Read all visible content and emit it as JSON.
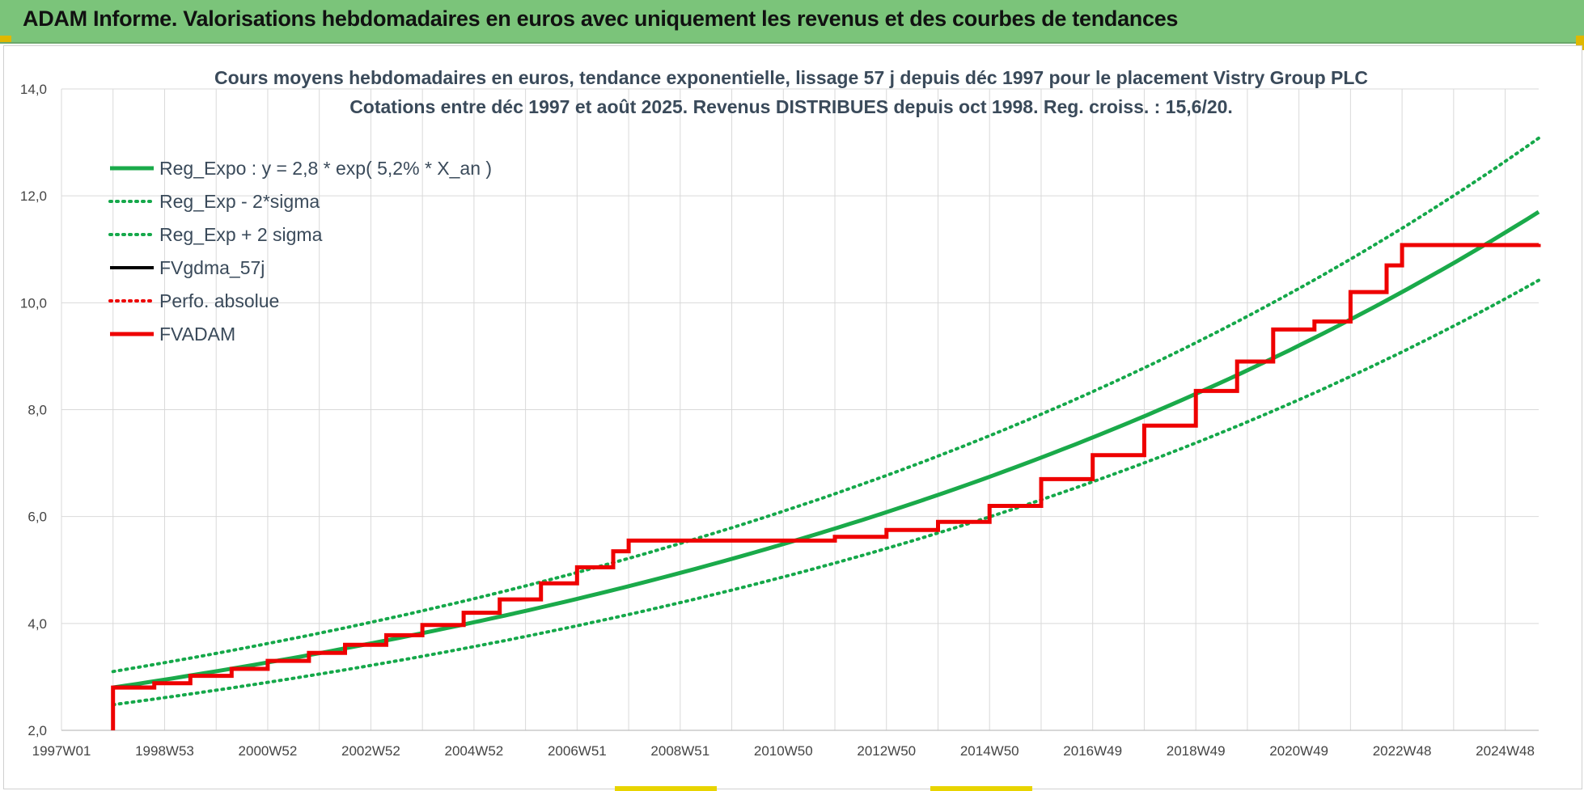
{
  "header": {
    "title": "ADAM Informe. Valorisations hebdomadaires en euros avec uniquement les revenus et des courbes de tendances"
  },
  "colors": {
    "banner": "#7bc47a",
    "reg_green": "#1aaa4a",
    "sigma_green": "#15a84a",
    "fvgdma_black": "#000000",
    "fvadam_red": "#ee0000"
  },
  "chart_data": {
    "type": "line",
    "title_line1": "Cours moyens hebdomadaires en euros, tendance exponentielle, lissage 57 j depuis déc 1997 pour le placement Vistry Group PLC",
    "title_line2": "Cotations entre déc 1997 et août 2025. Revenus DISTRIBUES depuis oct 1998. Reg. croiss. : 15,6/20.",
    "xlabel": "",
    "ylabel": "",
    "ylim": [
      2.0,
      14.0
    ],
    "xlim": [
      1997.0,
      2025.65
    ],
    "y_ticks": [
      "2,0",
      "4,0",
      "6,0",
      "8,0",
      "10,0",
      "12,0",
      "14,0"
    ],
    "x_ticks": [
      {
        "label": "1997W01",
        "x": 1997.0
      },
      {
        "label": "1998W53",
        "x": 1999.0
      },
      {
        "label": "2000W52",
        "x": 2001.0
      },
      {
        "label": "2002W52",
        "x": 2003.0
      },
      {
        "label": "2004W52",
        "x": 2005.0
      },
      {
        "label": "2006W51",
        "x": 2007.0
      },
      {
        "label": "2008W51",
        "x": 2009.0
      },
      {
        "label": "2010W50",
        "x": 2011.0
      },
      {
        "label": "2012W50",
        "x": 2013.0
      },
      {
        "label": "2014W50",
        "x": 2015.0
      },
      {
        "label": "2016W49",
        "x": 2017.0
      },
      {
        "label": "2018W49",
        "x": 2019.0
      },
      {
        "label": "2020W49",
        "x": 2021.0
      },
      {
        "label": "2022W48",
        "x": 2023.0
      },
      {
        "label": "2024W48",
        "x": 2025.0
      }
    ],
    "grid": true,
    "legend_position": "top-left",
    "series": [
      {
        "name": "Reg_Expo : y = 2,8 * exp( 5,2% *  X_an )",
        "style": "solid-thick",
        "color": "#1aaa4a",
        "x": [
          1998.0,
          2000,
          2002,
          2004,
          2006,
          2008,
          2010,
          2012,
          2014,
          2016,
          2018,
          2020,
          2022,
          2024,
          2025.65
        ],
        "y": [
          2.8,
          3.11,
          3.44,
          3.81,
          4.22,
          4.67,
          5.17,
          5.73,
          6.34,
          7.03,
          7.78,
          8.62,
          9.54,
          10.57,
          11.7
        ]
      },
      {
        "name": "Reg_Exp - 2*sigma",
        "style": "dotted",
        "color": "#15a84a",
        "x": [
          1998.0,
          2000,
          2002,
          2004,
          2006,
          2008,
          2010,
          2012,
          2014,
          2016,
          2018,
          2020,
          2022,
          2024,
          2025.65
        ],
        "y": [
          2.48,
          2.75,
          3.05,
          3.37,
          3.74,
          4.14,
          4.58,
          5.07,
          5.62,
          6.22,
          6.89,
          7.63,
          8.45,
          9.36,
          10.42
        ]
      },
      {
        "name": "Reg_Exp + 2 sigma",
        "style": "dotted",
        "color": "#15a84a",
        "x": [
          1998.0,
          2000,
          2002,
          2004,
          2006,
          2008,
          2010,
          2012,
          2014,
          2016,
          2018,
          2020,
          2022,
          2024,
          2025.65
        ],
        "y": [
          3.1,
          3.44,
          3.81,
          4.22,
          4.67,
          5.17,
          5.73,
          6.34,
          7.03,
          7.78,
          8.62,
          9.54,
          10.57,
          11.7,
          13.08
        ]
      },
      {
        "name": "FVgdma_57j",
        "style": "solid",
        "color": "#000000",
        "x": [
          1998.0,
          1998.8,
          1999.5,
          2000.3,
          2001.0,
          2001.8,
          2002.5,
          2003.3,
          2004.0,
          2004.8,
          2005.5,
          2006.3,
          2007.0,
          2007.7,
          2008.0,
          2012.0,
          2013.0,
          2014.0,
          2015.0,
          2016.0,
          2017.0,
          2018.0,
          2019.0,
          2019.8,
          2020.5,
          2021.3,
          2022.0,
          2022.7,
          2023.0,
          2025.65
        ],
        "y": [
          2.82,
          2.88,
          3.02,
          3.15,
          3.3,
          3.45,
          3.6,
          3.78,
          3.97,
          4.2,
          4.45,
          4.75,
          5.05,
          5.35,
          5.55,
          5.62,
          5.75,
          5.9,
          6.2,
          6.7,
          7.15,
          7.7,
          8.35,
          8.9,
          9.5,
          9.65,
          10.2,
          10.7,
          11.08,
          11.1
        ]
      },
      {
        "name": "Perfo. absolue",
        "style": "dotted",
        "color": "#ee0000",
        "x": [],
        "y": []
      },
      {
        "name": "FVADAM",
        "style": "solid-thick",
        "color": "#ee0000",
        "x": [
          1998.0,
          1998.0,
          1998.8,
          1999.5,
          2000.3,
          2001.0,
          2001.8,
          2002.5,
          2003.3,
          2004.0,
          2004.8,
          2005.5,
          2006.3,
          2007.0,
          2007.7,
          2008.0,
          2011.0,
          2012.0,
          2013.0,
          2014.0,
          2015.0,
          2016.0,
          2017.0,
          2018.0,
          2019.0,
          2019.8,
          2020.5,
          2021.3,
          2022.0,
          2022.7,
          2023.0,
          2025.65
        ],
        "y": [
          2.0,
          2.8,
          2.88,
          3.02,
          3.15,
          3.3,
          3.45,
          3.6,
          3.78,
          3.97,
          4.2,
          4.45,
          4.75,
          5.05,
          5.35,
          5.55,
          5.55,
          5.62,
          5.75,
          5.9,
          6.2,
          6.7,
          7.15,
          7.7,
          8.35,
          8.9,
          9.5,
          9.65,
          10.2,
          10.7,
          11.08,
          11.1
        ]
      }
    ]
  }
}
